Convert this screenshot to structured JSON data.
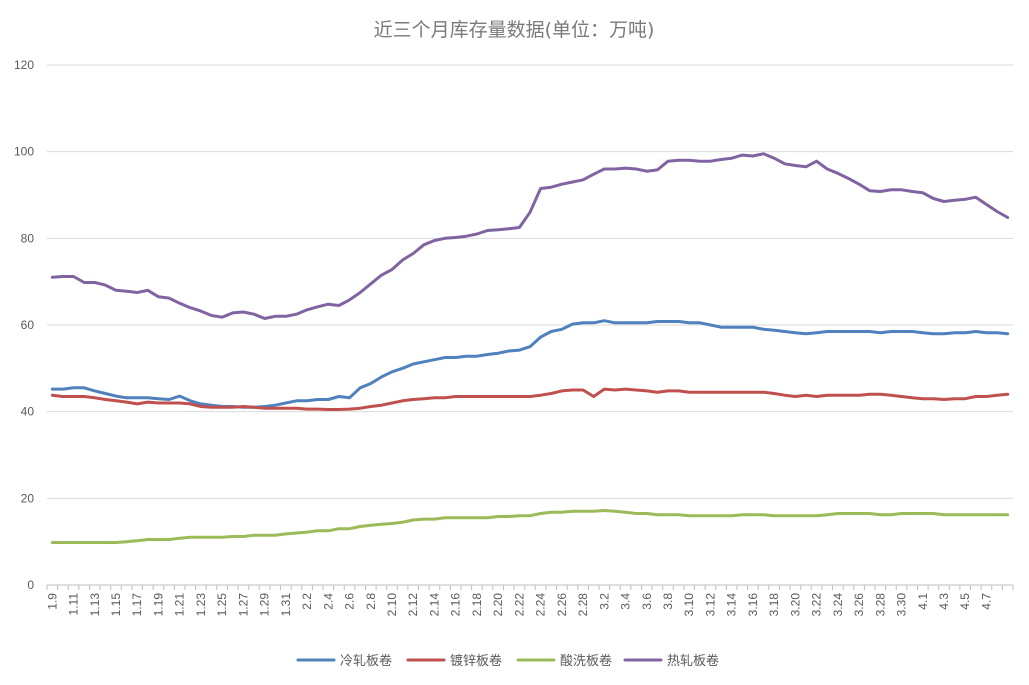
{
  "chart_data": {
    "type": "line",
    "title": "近三个月库存量数据(单位：万吨)",
    "ylim": [
      0,
      120
    ],
    "yticks": [
      0,
      20,
      40,
      60,
      80,
      100,
      120
    ],
    "grid": true,
    "legend_position": "bottom",
    "x": [
      "1.9",
      "1.10",
      "1.11",
      "1.12",
      "1.13",
      "1.14",
      "1.15",
      "1.16",
      "1.17",
      "1.18",
      "1.19",
      "1.20",
      "1.21",
      "1.22",
      "1.23",
      "1.24",
      "1.25",
      "1.26",
      "1.27",
      "1.28",
      "1.29",
      "1.30",
      "1.31",
      "2.1",
      "2.2",
      "2.3",
      "2.4",
      "2.5",
      "2.6",
      "2.7",
      "2.8",
      "2.9",
      "2.10",
      "2.11",
      "2.12",
      "2.13",
      "2.14",
      "2.15",
      "2.16",
      "2.17",
      "2.18",
      "2.19",
      "2.20",
      "2.21",
      "2.22",
      "2.23",
      "2.24",
      "2.25",
      "2.26",
      "2.27",
      "2.28",
      "3.1",
      "3.2",
      "3.3",
      "3.4",
      "3.5",
      "3.6",
      "3.7",
      "3.8",
      "3.9",
      "3.10",
      "3.11",
      "3.12",
      "3.13",
      "3.14",
      "3.15",
      "3.16",
      "3.17",
      "3.18",
      "3.19",
      "3.20",
      "3.21",
      "3.22",
      "3.23",
      "3.24",
      "3.25",
      "3.26",
      "3.27",
      "3.28",
      "3.29",
      "3.30",
      "3.31",
      "4.1",
      "4.2",
      "4.3",
      "4.4",
      "4.5",
      "4.6",
      "4.7",
      "4.8",
      "4.9"
    ],
    "xtick_labels": [
      "1.9",
      "1.11",
      "1.13",
      "1.15",
      "1.17",
      "1.19",
      "1.21",
      "1.23",
      "1.25",
      "1.27",
      "1.29",
      "1.31",
      "2.2",
      "2.4",
      "2.6",
      "2.8",
      "2.10",
      "2.12",
      "2.14",
      "2.16",
      "2.18",
      "2.20",
      "2.22",
      "2.24",
      "2.26",
      "2.28",
      "3.2",
      "3.4",
      "3.6",
      "3.8",
      "3.10",
      "3.12",
      "3.14",
      "3.16",
      "3.18",
      "3.20",
      "3.22",
      "3.24",
      "3.26",
      "3.28",
      "3.30",
      "4.1",
      "4.3",
      "4.5",
      "4.7"
    ],
    "series": [
      {
        "name": "冷轧板卷",
        "color": "#4f81bd",
        "values": [
          45.2,
          45.2,
          45.5,
          45.5,
          44.8,
          44.2,
          43.6,
          43.2,
          43.2,
          43.2,
          43.0,
          42.8,
          43.6,
          42.5,
          41.8,
          41.5,
          41.2,
          41.2,
          41.0,
          41.0,
          41.2,
          41.5,
          42.0,
          42.5,
          42.5,
          42.8,
          42.8,
          43.5,
          43.2,
          45.5,
          46.5,
          48.0,
          49.2,
          50.0,
          51.0,
          51.5,
          52.0,
          52.5,
          52.5,
          52.8,
          52.8,
          53.2,
          53.5,
          54.0,
          54.2,
          55.0,
          57.2,
          58.5,
          59.0,
          60.2,
          60.5,
          60.5,
          61.0,
          60.5,
          60.5,
          60.5,
          60.5,
          60.8,
          60.8,
          60.8,
          60.5,
          60.5,
          60.0,
          59.5,
          59.5,
          59.5,
          59.5,
          59.0,
          58.8,
          58.5,
          58.2,
          58.0,
          58.2,
          58.5,
          58.5,
          58.5,
          58.5,
          58.5,
          58.2,
          58.5,
          58.5,
          58.5,
          58.2,
          58.0,
          58.0,
          58.2,
          58.2,
          58.5,
          58.2,
          58.2,
          58.0
        ]
      },
      {
        "name": "镀锌板卷",
        "color": "#c0504d",
        "values": [
          43.8,
          43.5,
          43.5,
          43.5,
          43.2,
          42.8,
          42.5,
          42.2,
          41.8,
          42.2,
          42.0,
          42.0,
          42.0,
          41.8,
          41.2,
          41.0,
          41.0,
          41.0,
          41.2,
          41.0,
          40.8,
          40.8,
          40.8,
          40.8,
          40.6,
          40.6,
          40.5,
          40.5,
          40.6,
          40.8,
          41.2,
          41.5,
          42.0,
          42.5,
          42.8,
          43.0,
          43.2,
          43.2,
          43.5,
          43.5,
          43.5,
          43.5,
          43.5,
          43.5,
          43.5,
          43.5,
          43.8,
          44.2,
          44.8,
          45.0,
          45.0,
          43.5,
          45.2,
          45.0,
          45.2,
          45.0,
          44.8,
          44.5,
          44.8,
          44.8,
          44.5,
          44.5,
          44.5,
          44.5,
          44.5,
          44.5,
          44.5,
          44.5,
          44.2,
          43.8,
          43.5,
          43.8,
          43.5,
          43.8,
          43.8,
          43.8,
          43.8,
          44.0,
          44.0,
          43.8,
          43.5,
          43.2,
          43.0,
          43.0,
          42.8,
          43.0,
          43.0,
          43.5,
          43.5,
          43.8,
          44.0
        ]
      },
      {
        "name": "酸洗板卷",
        "color": "#9bbb59",
        "values": [
          9.8,
          9.8,
          9.8,
          9.8,
          9.8,
          9.8,
          9.8,
          10.0,
          10.2,
          10.5,
          10.5,
          10.5,
          10.8,
          11.0,
          11.0,
          11.0,
          11.0,
          11.2,
          11.2,
          11.5,
          11.5,
          11.5,
          11.8,
          12.0,
          12.2,
          12.5,
          12.5,
          13.0,
          13.0,
          13.5,
          13.8,
          14.0,
          14.2,
          14.5,
          15.0,
          15.2,
          15.2,
          15.5,
          15.5,
          15.5,
          15.5,
          15.5,
          15.8,
          15.8,
          16.0,
          16.0,
          16.5,
          16.8,
          16.8,
          17.0,
          17.0,
          17.0,
          17.2,
          17.0,
          16.8,
          16.5,
          16.5,
          16.2,
          16.2,
          16.2,
          16.0,
          16.0,
          16.0,
          16.0,
          16.0,
          16.2,
          16.2,
          16.2,
          16.0,
          16.0,
          16.0,
          16.0,
          16.0,
          16.2,
          16.5,
          16.5,
          16.5,
          16.5,
          16.2,
          16.2,
          16.5,
          16.5,
          16.5,
          16.5,
          16.2,
          16.2,
          16.2,
          16.2,
          16.2,
          16.2,
          16.2
        ]
      },
      {
        "name": "热轧板卷",
        "color": "#8064a2",
        "values": [
          71.0,
          71.2,
          71.2,
          69.8,
          69.8,
          69.2,
          68.0,
          67.8,
          67.5,
          68.0,
          66.5,
          66.2,
          65.0,
          64.0,
          63.2,
          62.2,
          61.8,
          62.8,
          63.0,
          62.5,
          61.5,
          62.0,
          62.0,
          62.5,
          63.5,
          64.2,
          64.8,
          64.5,
          65.8,
          67.5,
          69.5,
          71.5,
          72.8,
          75.0,
          76.5,
          78.5,
          79.5,
          80.0,
          80.2,
          80.5,
          81.0,
          81.8,
          82.0,
          82.2,
          82.5,
          86.0,
          91.5,
          91.8,
          92.5,
          93.0,
          93.5,
          94.8,
          96.0,
          96.0,
          96.2,
          96.0,
          95.5,
          95.8,
          97.8,
          98.0,
          98.0,
          97.8,
          97.8,
          98.2,
          98.5,
          99.2,
          99.0,
          99.5,
          98.5,
          97.2,
          96.8,
          96.5,
          97.8,
          96.0,
          95.0,
          93.8,
          92.5,
          91.0,
          90.8,
          91.2,
          91.2,
          90.8,
          90.5,
          89.2,
          88.5,
          88.8,
          89.0,
          89.5,
          87.8,
          86.2,
          84.8
        ]
      }
    ]
  }
}
